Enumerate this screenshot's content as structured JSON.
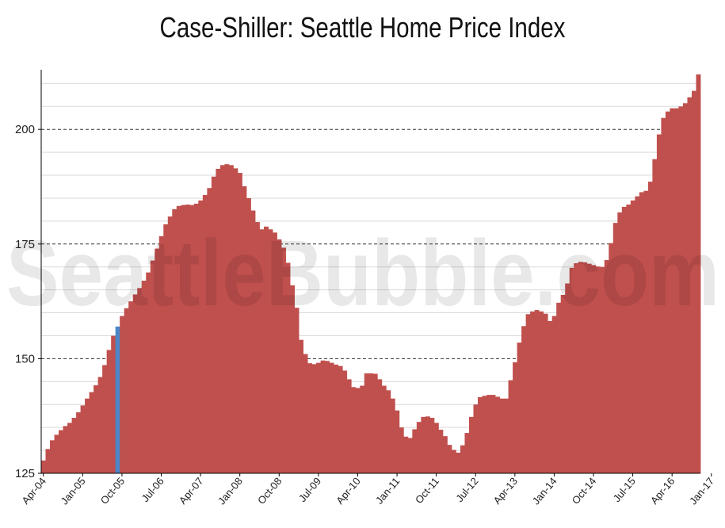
{
  "chart_data": {
    "type": "bar",
    "title": "Case-Shiller: Seattle Home Price Index",
    "watermark": "SeattleBubble.com",
    "xlabel": "",
    "ylabel": "",
    "ylim": [
      125,
      213
    ],
    "yticks": [
      125,
      150,
      175,
      200
    ],
    "x_tick_labels": [
      "Apr-04",
      "Jan-05",
      "Oct-05",
      "Jul-06",
      "Apr-07",
      "Jan-08",
      "Oct-08",
      "Jul-09",
      "Apr-10",
      "Jan-11",
      "Oct-11",
      "Jul-12",
      "Apr-13",
      "Jan-14",
      "Oct-14",
      "Jul-15",
      "Apr-16",
      "Jan-17"
    ],
    "start_month": "Apr-04",
    "highlight": {
      "month": "Sep-05",
      "value": 157.0,
      "color": "#4a86c8"
    },
    "bar_color": "#c0504d",
    "values": [
      127.8,
      130.3,
      132.2,
      133.4,
      134.4,
      135.3,
      136.0,
      137.1,
      138.3,
      139.8,
      141.3,
      142.7,
      144.2,
      146.0,
      148.6,
      151.9,
      155.0,
      157.0,
      159.3,
      161.0,
      162.5,
      164.0,
      165.4,
      167.0,
      168.8,
      171.4,
      174.0,
      176.7,
      179.3,
      181.0,
      182.6,
      183.3,
      183.5,
      183.6,
      183.5,
      183.8,
      184.5,
      185.7,
      187.2,
      189.7,
      191.4,
      192.2,
      192.4,
      192.2,
      191.5,
      190.5,
      187.6,
      185.0,
      182.3,
      179.8,
      178.2,
      178.8,
      178.2,
      177.5,
      176.0,
      174.2,
      170.9,
      166.0,
      161.1,
      154.1,
      151.0,
      149.0,
      148.8,
      149.1,
      149.6,
      149.5,
      149.1,
      148.7,
      148.4,
      147.4,
      145.5,
      143.8,
      143.6,
      144.1,
      146.8,
      146.8,
      146.7,
      145.5,
      144.1,
      143.1,
      141.3,
      138.7,
      135.0,
      133.0,
      132.7,
      134.6,
      136.2,
      137.3,
      137.4,
      137.1,
      136.0,
      134.5,
      133.1,
      131.2,
      130.1,
      129.5,
      131.1,
      133.8,
      137.3,
      140.0,
      141.6,
      141.9,
      142.1,
      142.1,
      141.7,
      141.3,
      141.3,
      145.3,
      149.2,
      153.5,
      157.1,
      159.7,
      160.3,
      160.6,
      160.3,
      159.8,
      158.2,
      159.3,
      162.2,
      163.9,
      166.4,
      169.8,
      170.8,
      171.1,
      171.0,
      170.7,
      170.4,
      170.1,
      170.0,
      171.5,
      175.2,
      179.6,
      181.9,
      183.1,
      183.6,
      184.5,
      185.4,
      186.3,
      186.6,
      188.6,
      193.5,
      198.9,
      202.5,
      203.9,
      204.6,
      204.6,
      205.0,
      205.7,
      207.0,
      208.4,
      212.0
    ]
  }
}
